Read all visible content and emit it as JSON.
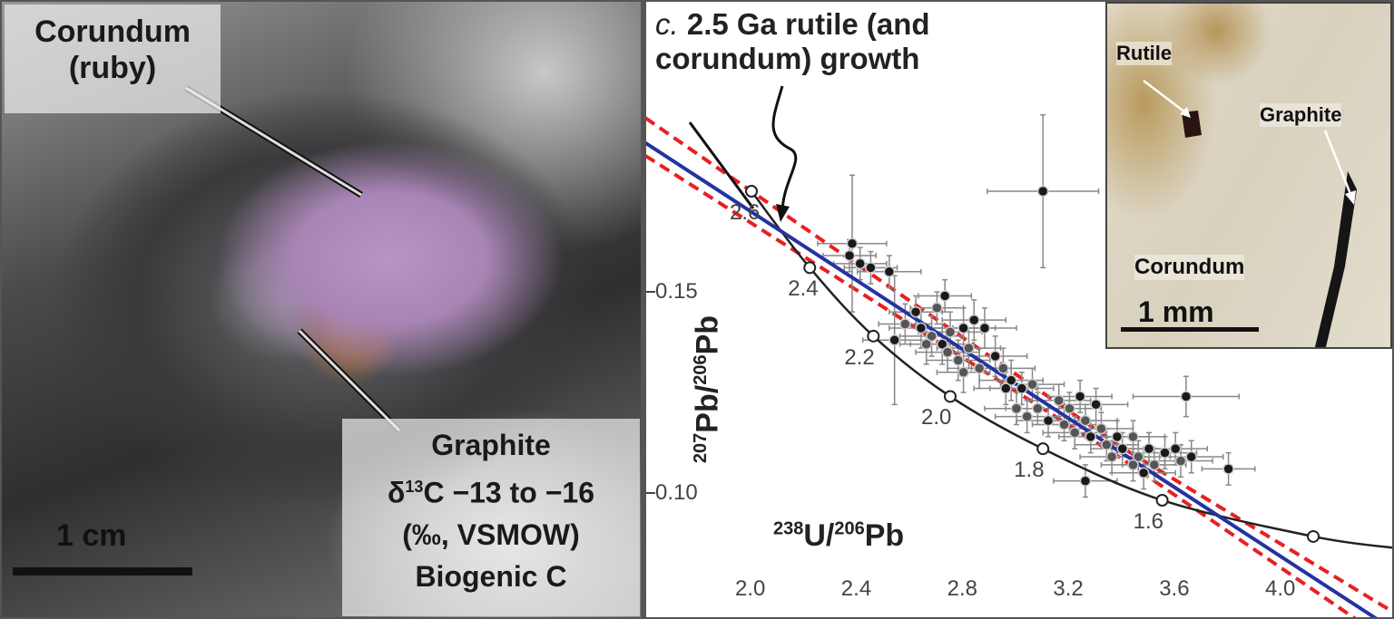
{
  "photo": {
    "corundum_label": [
      "Corundum",
      "(ruby)"
    ],
    "graphite_label": [
      "Graphite",
      "δ",
      "13",
      "C −13 to −16",
      "(‰, VSMOW)",
      "Biogenic C"
    ],
    "scale_bar": "1 cm"
  },
  "annotation": {
    "prefix": "c.",
    "line1": " 2.5 Ga rutile (and",
    "line2": "corundum) growth"
  },
  "inset": {
    "rutile": "Rutile",
    "graphite": "Graphite",
    "corundum": "Corundum",
    "scale_bar": "1 mm"
  },
  "chart_data": {
    "type": "scatter",
    "title": "",
    "xlabel": {
      "sup1": "238",
      "a": "U/",
      "sup2": "206",
      "b": "Pb"
    },
    "ylabel": {
      "sup1": "207",
      "a": "Pb/",
      "sup2": "206",
      "b": "Pb"
    },
    "xlim": [
      1.6,
      4.42
    ],
    "ylim": [
      0.0687,
      0.221
    ],
    "xticks": [
      "2.0",
      "2.4",
      "2.8",
      "3.2",
      "3.6",
      "4.0"
    ],
    "xtick_values": [
      2.0,
      2.4,
      2.8,
      3.2,
      3.6,
      4.0
    ],
    "yticks": [
      "0.15",
      "0.10"
    ],
    "ytick_values": [
      0.15,
      0.1
    ],
    "concordia": {
      "ages": [
        "2.6",
        "2.4",
        "2.2",
        "2.0",
        "1.8",
        "1.6",
        ""
      ],
      "points": [
        [
          2.0,
          0.175
        ],
        [
          2.22,
          0.156
        ],
        [
          2.46,
          0.139
        ],
        [
          2.75,
          0.124
        ],
        [
          3.1,
          0.111
        ],
        [
          3.55,
          0.0982
        ],
        [
          4.12,
          0.0892
        ]
      ],
      "end": [
        4.42,
        0.0864
      ]
    },
    "regression_line": [
      [
        1.6,
        0.187
      ],
      [
        4.36,
        0.0687
      ]
    ],
    "error_envelope": {
      "upper": [
        [
          1.6,
          0.1932
        ],
        [
          3.4,
          0.1112
        ],
        [
          4.42,
          0.0705
        ]
      ],
      "lower": [
        [
          1.6,
          0.1838
        ],
        [
          3.4,
          0.1084
        ],
        [
          4.28,
          0.0687
        ]
      ]
    },
    "colors": {
      "regression": "#2433a0",
      "envelope": "#e82020",
      "concordia": "#222222",
      "points": "#1a1a1a",
      "points_gray": "#555555"
    },
    "points": [
      [
        3.1,
        0.175,
        0.21,
        0.019,
        1
      ],
      [
        2.38,
        0.162,
        0.13,
        0.017,
        1
      ],
      [
        2.37,
        0.159,
        0.1,
        0.004,
        1
      ],
      [
        2.41,
        0.157,
        0.1,
        0.004,
        1
      ],
      [
        2.45,
        0.156,
        0.1,
        0.004,
        1
      ],
      [
        2.52,
        0.155,
        0.12,
        0.004,
        1
      ],
      [
        2.73,
        0.149,
        0.1,
        0.004,
        1
      ],
      [
        2.54,
        0.138,
        0.12,
        0.016,
        1
      ],
      [
        2.58,
        0.142,
        0.1,
        0.005,
        0
      ],
      [
        2.62,
        0.145,
        0.1,
        0.004,
        1
      ],
      [
        2.64,
        0.141,
        0.12,
        0.005,
        1
      ],
      [
        2.68,
        0.139,
        0.12,
        0.005,
        0
      ],
      [
        2.72,
        0.137,
        0.12,
        0.005,
        1
      ],
      [
        2.75,
        0.14,
        0.12,
        0.005,
        0
      ],
      [
        2.8,
        0.141,
        0.12,
        0.005,
        1
      ],
      [
        2.84,
        0.143,
        0.12,
        0.005,
        1
      ],
      [
        2.88,
        0.141,
        0.12,
        0.005,
        1
      ],
      [
        2.66,
        0.137,
        0.1,
        0.005,
        0
      ],
      [
        2.74,
        0.135,
        0.12,
        0.005,
        0
      ],
      [
        2.78,
        0.133,
        0.12,
        0.005,
        0
      ],
      [
        2.82,
        0.136,
        0.12,
        0.005,
        0
      ],
      [
        2.86,
        0.131,
        0.12,
        0.005,
        0
      ],
      [
        2.8,
        0.13,
        0.1,
        0.005,
        0
      ],
      [
        2.92,
        0.134,
        0.12,
        0.005,
        1
      ],
      [
        2.95,
        0.131,
        0.12,
        0.005,
        0
      ],
      [
        2.98,
        0.128,
        0.12,
        0.005,
        1
      ],
      [
        2.96,
        0.126,
        0.12,
        0.004,
        1
      ],
      [
        3.02,
        0.126,
        0.12,
        0.004,
        1
      ],
      [
        3.06,
        0.127,
        0.12,
        0.004,
        0
      ],
      [
        3.0,
        0.121,
        0.12,
        0.004,
        0
      ],
      [
        3.04,
        0.119,
        0.12,
        0.004,
        0
      ],
      [
        3.08,
        0.121,
        0.12,
        0.004,
        0
      ],
      [
        3.12,
        0.118,
        0.12,
        0.004,
        1
      ],
      [
        3.16,
        0.123,
        0.12,
        0.004,
        0
      ],
      [
        3.2,
        0.121,
        0.12,
        0.004,
        0
      ],
      [
        3.24,
        0.124,
        0.12,
        0.004,
        1
      ],
      [
        3.18,
        0.117,
        0.12,
        0.004,
        0
      ],
      [
        3.22,
        0.115,
        0.12,
        0.004,
        0
      ],
      [
        3.26,
        0.118,
        0.12,
        0.004,
        0
      ],
      [
        3.28,
        0.114,
        0.12,
        0.004,
        1
      ],
      [
        3.3,
        0.122,
        0.12,
        0.004,
        1
      ],
      [
        3.32,
        0.116,
        0.12,
        0.004,
        0
      ],
      [
        3.34,
        0.112,
        0.12,
        0.004,
        0
      ],
      [
        3.38,
        0.114,
        0.12,
        0.004,
        1
      ],
      [
        3.36,
        0.109,
        0.12,
        0.004,
        0
      ],
      [
        3.4,
        0.111,
        0.12,
        0.004,
        1
      ],
      [
        3.44,
        0.114,
        0.12,
        0.004,
        0
      ],
      [
        3.46,
        0.109,
        0.12,
        0.004,
        0
      ],
      [
        3.5,
        0.111,
        0.12,
        0.004,
        1
      ],
      [
        3.52,
        0.107,
        0.12,
        0.004,
        0
      ],
      [
        3.48,
        0.105,
        0.12,
        0.004,
        1
      ],
      [
        3.56,
        0.11,
        0.12,
        0.004,
        1
      ],
      [
        3.6,
        0.111,
        0.12,
        0.004,
        1
      ],
      [
        3.62,
        0.108,
        0.12,
        0.004,
        0
      ],
      [
        3.66,
        0.109,
        0.12,
        0.004,
        1
      ],
      [
        3.64,
        0.124,
        0.2,
        0.005,
        1
      ],
      [
        3.8,
        0.106,
        0.1,
        0.004,
        1
      ],
      [
        3.26,
        0.103,
        0.12,
        0.004,
        1
      ],
      [
        3.44,
        0.107,
        0.12,
        0.004,
        0
      ],
      [
        2.7,
        0.146,
        0.1,
        0.004,
        0
      ]
    ]
  }
}
